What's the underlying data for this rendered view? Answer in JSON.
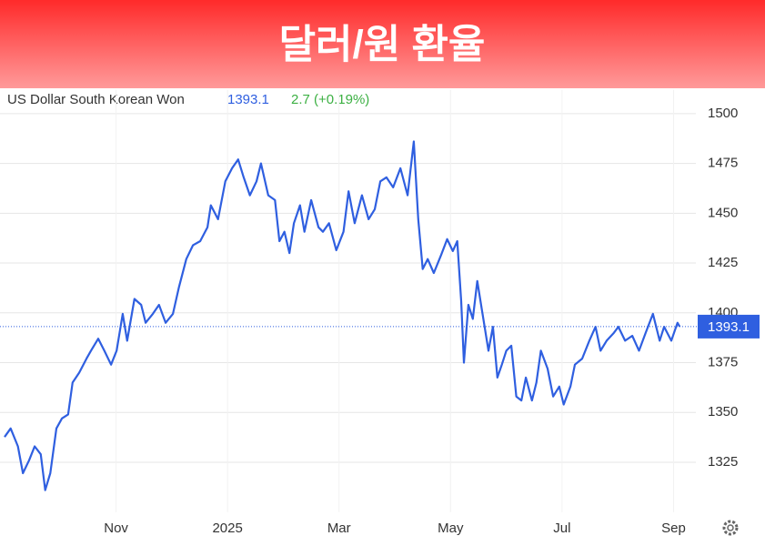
{
  "chart_data": {
    "type": "line",
    "title": "달러/원 환율",
    "series_name": "US Dollar South Korean Won",
    "change_label": "2.7 (+0.19%)",
    "color": "#2f5fe0",
    "x": [
      0,
      0.11,
      0.24,
      0.33,
      0.44,
      0.54,
      0.65,
      0.73,
      0.82,
      0.93,
      1.03,
      1.14,
      1.22,
      1.34,
      1.47,
      1.55,
      1.68,
      1.79,
      1.91,
      2.01,
      2.12,
      2.2,
      2.33,
      2.45,
      2.53,
      2.66,
      2.77,
      2.89,
      3.02,
      3.13,
      3.26,
      3.38,
      3.51,
      3.64,
      3.7,
      3.83,
      3.96,
      4.08,
      4.19,
      4.29,
      4.4,
      4.52,
      4.6,
      4.73,
      4.85,
      4.93,
      5.02,
      5.11,
      5.19,
      5.3,
      5.38,
      5.5,
      5.63,
      5.71,
      5.82,
      5.95,
      6.08,
      6.17,
      6.28,
      6.41,
      6.53,
      6.64,
      6.74,
      6.85,
      6.97,
      7.1,
      7.23,
      7.34,
      7.42,
      7.5,
      7.59,
      7.7,
      7.83,
      7.94,
      8.04,
      8.12,
      8.19,
      8.24,
      8.32,
      8.4,
      8.48,
      8.56,
      8.68,
      8.76,
      8.84,
      8.92,
      9.0,
      9.09,
      9.18,
      9.27,
      9.35,
      9.46,
      9.54,
      9.62,
      9.74,
      9.84,
      9.95,
      10.03,
      10.15,
      10.23,
      10.36,
      10.49,
      10.6,
      10.69,
      10.8,
      10.93,
      11.01,
      11.13,
      11.26,
      11.38,
      11.5,
      11.63,
      11.75,
      11.83,
      11.96,
      12.07,
      12.11
    ],
    "values": [
      1337.7,
      1342,
      1333,
      1319.5,
      1326,
      1333,
      1329,
      1311,
      1319.5,
      1342,
      1347,
      1349,
      1365,
      1370,
      1377,
      1381,
      1387,
      1381,
      1374,
      1381,
      1399.5,
      1386,
      1407,
      1404,
      1395,
      1399.5,
      1404,
      1395,
      1399.5,
      1413,
      1427,
      1434,
      1436,
      1443,
      1454,
      1447,
      1466,
      1472.6,
      1477,
      1468,
      1459,
      1466,
      1475,
      1459,
      1456.6,
      1436,
      1440.7,
      1430,
      1445,
      1454,
      1440.7,
      1456.6,
      1443,
      1440.7,
      1445,
      1431.4,
      1440.7,
      1461,
      1445,
      1459,
      1447,
      1452,
      1466,
      1468,
      1463,
      1472.6,
      1459,
      1486,
      1447,
      1422,
      1427,
      1420,
      1429,
      1437,
      1431,
      1436,
      1406,
      1375,
      1404,
      1397,
      1416,
      1402,
      1381,
      1393,
      1367.5,
      1374,
      1381,
      1383.5,
      1358,
      1356,
      1367.5,
      1356,
      1365,
      1381,
      1372,
      1358,
      1363,
      1354,
      1363,
      1374,
      1377,
      1386,
      1393,
      1381,
      1386,
      1390,
      1393,
      1386,
      1388.5,
      1381,
      1390,
      1399.5,
      1386,
      1393,
      1386,
      1395,
      1393.1
    ],
    "xlim": [
      0,
      12.4
    ],
    "xticks": [
      {
        "value": 2,
        "label": "Nov"
      },
      {
        "value": 4,
        "label": "2025"
      },
      {
        "value": 6,
        "label": "Mar"
      },
      {
        "value": 8,
        "label": "May"
      },
      {
        "value": 10,
        "label": "Jul"
      },
      {
        "value": 12,
        "label": "Sep"
      }
    ],
    "ylim": [
      1300,
      1512
    ],
    "yticks": [
      1325,
      1350,
      1375,
      1400,
      1425,
      1450,
      1475,
      1500
    ],
    "grid": true
  }
}
